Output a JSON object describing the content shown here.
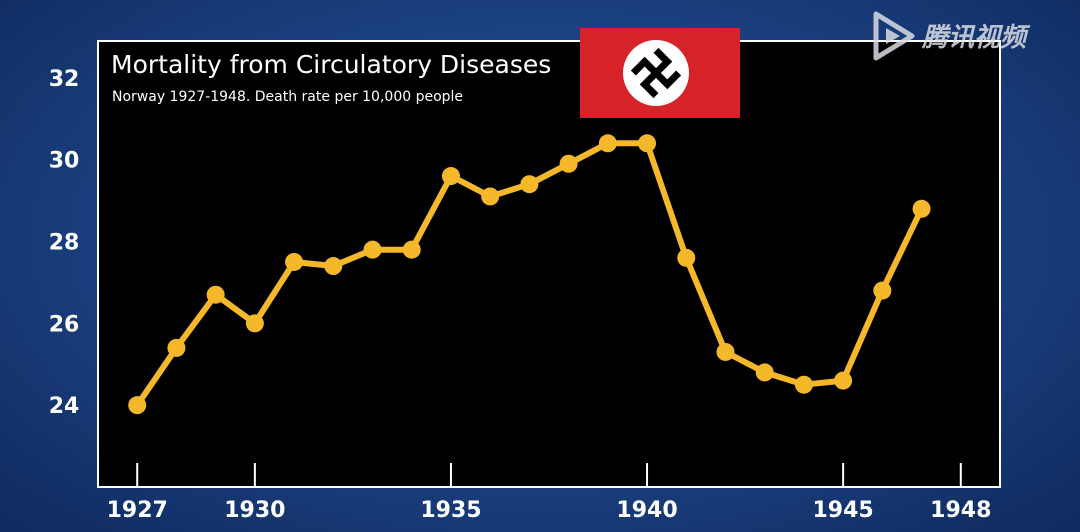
{
  "watermark": {
    "text": "腾讯视频",
    "icon": "tencent-video-play-icon"
  },
  "flag": {
    "icon": "swastika-flag-icon",
    "field_color": "#d72229",
    "disc_color": "#ffffff",
    "symbol_color": "#000000"
  },
  "colors": {
    "background": "#1f4a8f",
    "plot_bg": "#000000",
    "plot_border": "#ffffff",
    "line": "#f5b82a"
  },
  "chart_data": {
    "type": "line",
    "title": "Mortality from Circulatory Diseases",
    "subtitle": "Norway 1927-1948. Death rate per 10,000 people",
    "xlabel": "",
    "ylabel": "",
    "x_ticks": [
      1927,
      1930,
      1935,
      1940,
      1945,
      1948
    ],
    "y_ticks": [
      24,
      26,
      28,
      30,
      32
    ],
    "xlim": [
      1926.0,
      1949.0
    ],
    "ylim": [
      22.0,
      32.9
    ],
    "grid": false,
    "series": [
      {
        "x": [
          1927,
          1928,
          1929,
          1930,
          1931,
          1932,
          1933,
          1934,
          1935,
          1936,
          1937,
          1938,
          1939,
          1940,
          1941,
          1942,
          1943,
          1944,
          1945,
          1946,
          1947
        ],
        "y": [
          24.0,
          25.4,
          26.7,
          26.0,
          27.5,
          27.4,
          27.8,
          27.8,
          29.6,
          29.1,
          29.4,
          29.9,
          30.4,
          30.4,
          27.6,
          25.3,
          24.8,
          24.5,
          24.6,
          26.8,
          28.8
        ]
      }
    ]
  }
}
